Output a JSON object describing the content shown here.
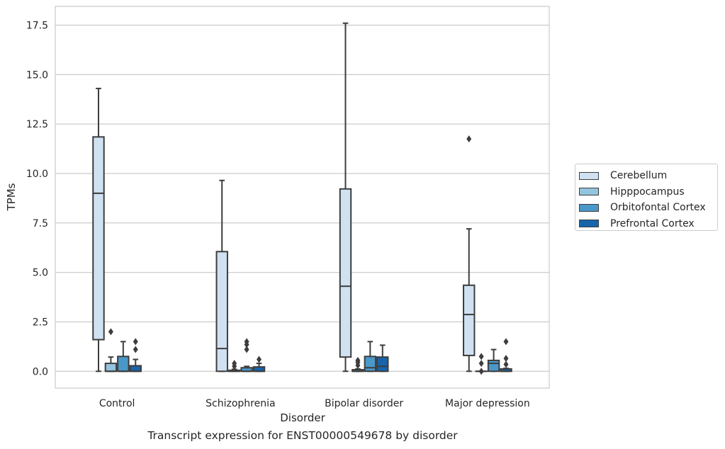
{
  "chart_data": {
    "type": "box",
    "xlabel": "Disorder",
    "ylabel": "TPMs",
    "caption": "Transcript expression for ENST00000549678 by disorder",
    "ylim": [
      -0.85,
      18.45
    ],
    "yticks": [
      "0.0",
      "2.5",
      "5.0",
      "7.5",
      "10.0",
      "12.5",
      "15.0",
      "17.5"
    ],
    "grid": true,
    "legend_position": "right",
    "categories": [
      "Control",
      "Schizophrenia",
      "Bipolar disorder",
      "Major depression"
    ],
    "series": [
      {
        "name": "Cerebellum",
        "color": "#d0e1f2",
        "boxes": [
          {
            "whislo": 0.0,
            "q1": 1.6,
            "median": 9.0,
            "q3": 11.85,
            "whishi": 14.3,
            "fliers": []
          },
          {
            "whislo": 0.0,
            "q1": 0.0,
            "median": 1.15,
            "q3": 6.05,
            "whishi": 9.65,
            "fliers": []
          },
          {
            "whislo": 0.0,
            "q1": 0.72,
            "median": 4.3,
            "q3": 9.22,
            "whishi": 17.6,
            "fliers": []
          },
          {
            "whislo": 0.0,
            "q1": 0.8,
            "median": 2.87,
            "q3": 4.35,
            "whishi": 7.2,
            "fliers": [
              11.75
            ]
          }
        ]
      },
      {
        "name": "Hipppocampus",
        "color": "#94c4df",
        "boxes": [
          {
            "whislo": 0.0,
            "q1": 0.0,
            "median": 0.0,
            "q3": 0.4,
            "whishi": 0.72,
            "fliers": [
              2.0
            ]
          },
          {
            "whislo": 0.0,
            "q1": 0.0,
            "median": 0.0,
            "q3": 0.05,
            "whishi": 0.1,
            "fliers": [
              0.25,
              0.4
            ]
          },
          {
            "whislo": 0.0,
            "q1": 0.0,
            "median": 0.0,
            "q3": 0.08,
            "whishi": 0.12,
            "fliers": [
              0.3,
              0.45,
              0.55
            ]
          },
          {
            "whislo": 0.0,
            "q1": 0.0,
            "median": 0.0,
            "q3": 0.0,
            "whishi": 0.0,
            "fliers": [
              0.0,
              0.4,
              0.75
            ]
          }
        ]
      },
      {
        "name": "Orbitofontal Cortex",
        "color": "#4a98c9",
        "boxes": [
          {
            "whislo": 0.0,
            "q1": 0.0,
            "median": 0.0,
            "q3": 0.75,
            "whishi": 1.5,
            "fliers": []
          },
          {
            "whislo": 0.0,
            "q1": 0.0,
            "median": 0.0,
            "q3": 0.18,
            "whishi": 0.25,
            "fliers": [
              1.1,
              1.35,
              1.5
            ]
          },
          {
            "whislo": 0.0,
            "q1": 0.0,
            "median": 0.18,
            "q3": 0.75,
            "whishi": 1.5,
            "fliers": []
          },
          {
            "whislo": 0.0,
            "q1": 0.0,
            "median": 0.4,
            "q3": 0.55,
            "whishi": 1.1,
            "fliers": []
          }
        ]
      },
      {
        "name": "Prefrontal Cortex",
        "color": "#1764ab",
        "boxes": [
          {
            "whislo": 0.0,
            "q1": 0.0,
            "median": 0.0,
            "q3": 0.28,
            "whishi": 0.6,
            "fliers": [
              1.1,
              1.5
            ]
          },
          {
            "whislo": 0.0,
            "q1": 0.0,
            "median": 0.0,
            "q3": 0.22,
            "whishi": 0.4,
            "fliers": [
              0.6
            ]
          },
          {
            "whislo": 0.0,
            "q1": 0.0,
            "median": 0.25,
            "q3": 0.72,
            "whishi": 1.32,
            "fliers": []
          },
          {
            "whislo": 0.0,
            "q1": 0.0,
            "median": 0.0,
            "q3": 0.12,
            "whishi": 0.15,
            "fliers": [
              0.35,
              0.65,
              1.5
            ]
          }
        ]
      }
    ]
  }
}
